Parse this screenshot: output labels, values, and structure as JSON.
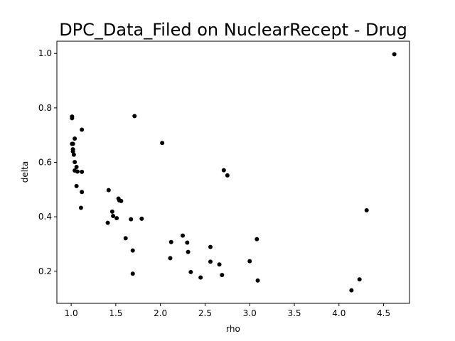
{
  "chart_data": {
    "type": "scatter",
    "title": "DPC_Data_Filed on NuclearRecept - Drug",
    "xlabel": "rho",
    "ylabel": "delta",
    "xlim": [
      0.84,
      4.79
    ],
    "ylim": [
      0.082,
      1.045
    ],
    "xticks": [
      1.0,
      1.5,
      2.0,
      2.5,
      3.0,
      3.5,
      4.0,
      4.5
    ],
    "xtick_labels": [
      "1.0",
      "1.5",
      "2.0",
      "2.5",
      "3.0",
      "3.5",
      "4.0",
      "4.5"
    ],
    "yticks": [
      0.2,
      0.4,
      0.6,
      0.8,
      1.0
    ],
    "ytick_labels": [
      "0.2",
      "0.4",
      "0.6",
      "0.8",
      "1.0"
    ],
    "grid": false,
    "marker_color": "#000000",
    "points": [
      {
        "x": 1.01,
        "y": 0.768
      },
      {
        "x": 1.01,
        "y": 0.762
      },
      {
        "x": 1.01,
        "y": 0.668
      },
      {
        "x": 1.02,
        "y": 0.668
      },
      {
        "x": 1.04,
        "y": 0.687
      },
      {
        "x": 1.02,
        "y": 0.648
      },
      {
        "x": 1.02,
        "y": 0.64
      },
      {
        "x": 1.03,
        "y": 0.628
      },
      {
        "x": 1.04,
        "y": 0.601
      },
      {
        "x": 1.06,
        "y": 0.583
      },
      {
        "x": 1.04,
        "y": 0.57
      },
      {
        "x": 1.07,
        "y": 0.566
      },
      {
        "x": 1.12,
        "y": 0.565
      },
      {
        "x": 1.12,
        "y": 0.72
      },
      {
        "x": 1.06,
        "y": 0.513
      },
      {
        "x": 1.12,
        "y": 0.491
      },
      {
        "x": 1.11,
        "y": 0.433
      },
      {
        "x": 1.42,
        "y": 0.498
      },
      {
        "x": 1.53,
        "y": 0.467
      },
      {
        "x": 1.54,
        "y": 0.46
      },
      {
        "x": 1.56,
        "y": 0.458
      },
      {
        "x": 1.46,
        "y": 0.419
      },
      {
        "x": 1.47,
        "y": 0.403
      },
      {
        "x": 1.51,
        "y": 0.395
      },
      {
        "x": 1.41,
        "y": 0.378
      },
      {
        "x": 1.67,
        "y": 0.391
      },
      {
        "x": 1.79,
        "y": 0.393
      },
      {
        "x": 1.71,
        "y": 0.77
      },
      {
        "x": 1.61,
        "y": 0.321
      },
      {
        "x": 1.69,
        "y": 0.276
      },
      {
        "x": 1.69,
        "y": 0.191
      },
      {
        "x": 2.02,
        "y": 0.671
      },
      {
        "x": 2.12,
        "y": 0.307
      },
      {
        "x": 2.11,
        "y": 0.248
      },
      {
        "x": 2.25,
        "y": 0.331
      },
      {
        "x": 2.3,
        "y": 0.305
      },
      {
        "x": 2.31,
        "y": 0.271
      },
      {
        "x": 2.34,
        "y": 0.197
      },
      {
        "x": 2.45,
        "y": 0.177
      },
      {
        "x": 2.56,
        "y": 0.289
      },
      {
        "x": 2.56,
        "y": 0.235
      },
      {
        "x": 2.66,
        "y": 0.225
      },
      {
        "x": 2.69,
        "y": 0.186
      },
      {
        "x": 2.71,
        "y": 0.571
      },
      {
        "x": 2.75,
        "y": 0.552
      },
      {
        "x": 3.0,
        "y": 0.237
      },
      {
        "x": 3.08,
        "y": 0.318
      },
      {
        "x": 3.09,
        "y": 0.166
      },
      {
        "x": 4.14,
        "y": 0.13
      },
      {
        "x": 4.23,
        "y": 0.17
      },
      {
        "x": 4.31,
        "y": 0.424
      },
      {
        "x": 4.62,
        "y": 0.997
      }
    ]
  }
}
